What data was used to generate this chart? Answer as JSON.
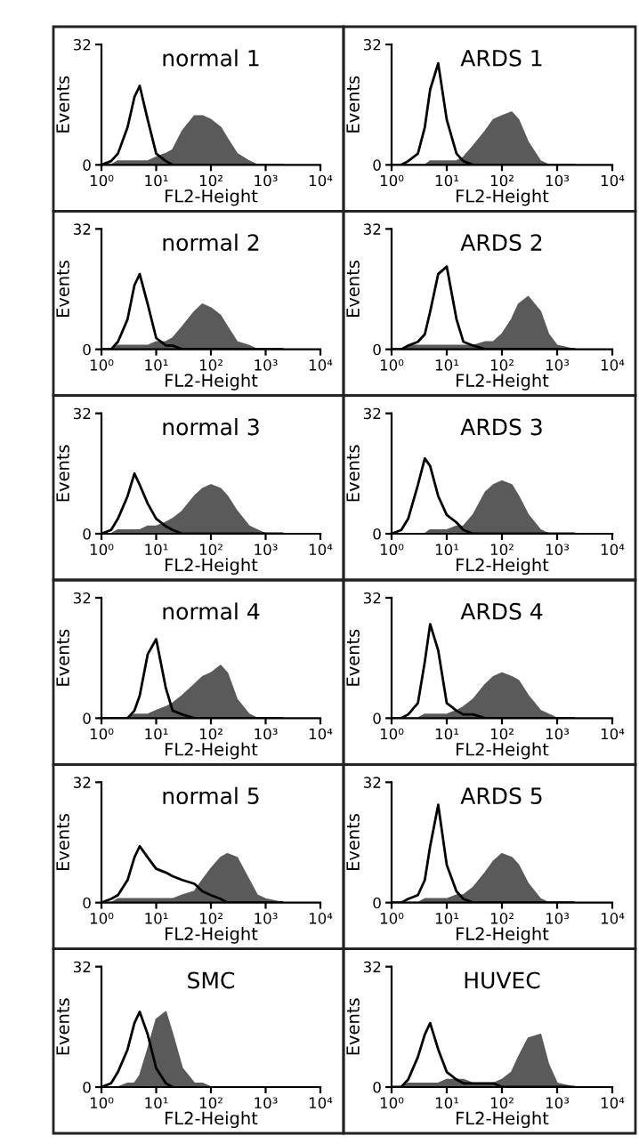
{
  "chart_data": [
    {
      "type": "area",
      "title": "normal 1",
      "xlabel": "FL2-Height",
      "ylabel": "Events",
      "log": "x",
      "xlim": [
        1,
        10000
      ],
      "ylim": [
        0,
        32
      ],
      "xticks": [
        {
          "value": 1,
          "label": "10⁰"
        },
        {
          "value": 10,
          "label": "10¹"
        },
        {
          "value": 100,
          "label": "10²"
        },
        {
          "value": 1000,
          "label": "10³"
        },
        {
          "value": 10000,
          "label": "10⁴"
        }
      ],
      "yticks": [
        0,
        32
      ],
      "x": [
        1,
        1.5,
        2,
        3,
        4,
        5,
        7,
        10,
        15,
        20,
        30,
        50,
        70,
        100,
        150,
        200,
        300,
        500,
        700,
        1000,
        2000
      ],
      "series": [
        {
          "color": "#5a5a5a",
          "values": [
            0,
            0,
            1,
            1,
            1,
            1,
            1,
            2,
            3,
            4,
            9,
            13,
            13,
            12,
            10,
            7,
            3,
            1,
            0,
            0,
            0
          ]
        },
        {
          "type": "line",
          "color": "#000000",
          "values": [
            0,
            1,
            3,
            10,
            18,
            21,
            12,
            3,
            1,
            0,
            0,
            0,
            0,
            0,
            0,
            0,
            0,
            0,
            0,
            0,
            0
          ]
        }
      ]
    },
    {
      "type": "area",
      "title": "ARDS 1",
      "xlabel": "FL2-Height",
      "ylabel": "Events",
      "log": "x",
      "xlim": [
        1,
        10000
      ],
      "ylim": [
        0,
        32
      ],
      "xticks": [
        {
          "value": 1,
          "label": "10⁰"
        },
        {
          "value": 10,
          "label": "10¹"
        },
        {
          "value": 100,
          "label": "10²"
        },
        {
          "value": 1000,
          "label": "10³"
        },
        {
          "value": 10000,
          "label": "10⁴"
        }
      ],
      "yticks": [
        0,
        32
      ],
      "x": [
        1,
        1.5,
        2,
        3,
        4,
        5,
        7,
        10,
        15,
        20,
        30,
        50,
        70,
        100,
        150,
        200,
        300,
        500,
        700,
        1000,
        2000
      ],
      "series": [
        {
          "color": "#5a5a5a",
          "values": [
            0,
            0,
            0,
            0,
            0,
            1,
            1,
            1,
            1,
            2,
            5,
            9,
            12,
            13,
            14,
            12,
            6,
            1,
            0,
            0,
            0
          ]
        },
        {
          "type": "line",
          "color": "#000000",
          "values": [
            0,
            0,
            1,
            3,
            10,
            20,
            27,
            12,
            3,
            1,
            0,
            0,
            0,
            0,
            0,
            0,
            0,
            0,
            0,
            0,
            0
          ]
        }
      ]
    },
    {
      "type": "area",
      "title": "normal 2",
      "xlabel": "FL2-Height",
      "ylabel": "Events",
      "log": "x",
      "xlim": [
        1,
        10000
      ],
      "ylim": [
        0,
        32
      ],
      "xticks": [
        {
          "value": 1,
          "label": "10⁰"
        },
        {
          "value": 10,
          "label": "10¹"
        },
        {
          "value": 100,
          "label": "10²"
        },
        {
          "value": 1000,
          "label": "10³"
        },
        {
          "value": 10000,
          "label": "10⁴"
        }
      ],
      "yticks": [
        0,
        32
      ],
      "x": [
        1,
        1.5,
        2,
        3,
        4,
        5,
        7,
        10,
        15,
        20,
        30,
        50,
        70,
        100,
        150,
        200,
        300,
        500,
        700,
        1000,
        2000
      ],
      "series": [
        {
          "color": "#5a5a5a",
          "values": [
            0,
            0,
            1,
            1,
            1,
            1,
            1,
            2,
            2,
            3,
            6,
            10,
            12,
            11,
            9,
            6,
            2,
            1,
            0,
            0,
            0
          ]
        },
        {
          "type": "line",
          "color": "#000000",
          "values": [
            0,
            0,
            2,
            8,
            17,
            20,
            12,
            3,
            1,
            1,
            0,
            0,
            0,
            0,
            0,
            0,
            0,
            0,
            0,
            0,
            0
          ]
        }
      ]
    },
    {
      "type": "area",
      "title": "ARDS 2",
      "xlabel": "FL2-Height",
      "ylabel": "Events",
      "log": "x",
      "xlim": [
        1,
        10000
      ],
      "ylim": [
        0,
        32
      ],
      "xticks": [
        {
          "value": 1,
          "label": "10⁰"
        },
        {
          "value": 10,
          "label": "10¹"
        },
        {
          "value": 100,
          "label": "10²"
        },
        {
          "value": 1000,
          "label": "10³"
        },
        {
          "value": 10000,
          "label": "10⁴"
        }
      ],
      "yticks": [
        0,
        32
      ],
      "x": [
        1,
        1.5,
        2,
        3,
        4,
        5,
        7,
        10,
        15,
        20,
        30,
        50,
        70,
        100,
        150,
        200,
        300,
        500,
        700,
        1000,
        2000
      ],
      "series": [
        {
          "color": "#5a5a5a",
          "values": [
            0,
            0,
            1,
            1,
            1,
            1,
            1,
            1,
            1,
            1,
            1,
            2,
            2,
            4,
            8,
            12,
            14,
            10,
            4,
            1,
            0
          ]
        },
        {
          "type": "line",
          "color": "#000000",
          "values": [
            0,
            0,
            1,
            2,
            4,
            10,
            20,
            22,
            8,
            2,
            1,
            0,
            0,
            0,
            0,
            0,
            0,
            0,
            0,
            0,
            0
          ]
        }
      ]
    },
    {
      "type": "area",
      "title": "normal 3",
      "xlabel": "FL2-Height",
      "ylabel": "Events",
      "log": "x",
      "xlim": [
        1,
        10000
      ],
      "ylim": [
        0,
        32
      ],
      "xticks": [
        {
          "value": 1,
          "label": "10⁰"
        },
        {
          "value": 10,
          "label": "10¹"
        },
        {
          "value": 100,
          "label": "10²"
        },
        {
          "value": 1000,
          "label": "10³"
        },
        {
          "value": 10000,
          "label": "10⁴"
        }
      ],
      "yticks": [
        0,
        32
      ],
      "x": [
        1,
        1.5,
        2,
        3,
        4,
        5,
        7,
        10,
        15,
        20,
        30,
        50,
        70,
        100,
        150,
        200,
        300,
        500,
        700,
        1000,
        2000
      ],
      "series": [
        {
          "color": "#5a5a5a",
          "values": [
            0,
            0,
            1,
            1,
            1,
            1,
            2,
            2,
            3,
            4,
            6,
            10,
            12,
            13,
            12,
            10,
            6,
            2,
            1,
            0,
            0
          ]
        },
        {
          "type": "line",
          "color": "#000000",
          "values": [
            0,
            1,
            4,
            10,
            16,
            13,
            8,
            4,
            2,
            1,
            0,
            0,
            0,
            0,
            0,
            0,
            0,
            0,
            0,
            0,
            0
          ]
        }
      ]
    },
    {
      "type": "area",
      "title": "ARDS 3",
      "xlabel": "FL2-Height",
      "ylabel": "Events",
      "log": "x",
      "xlim": [
        1,
        10000
      ],
      "ylim": [
        0,
        32
      ],
      "xticks": [
        {
          "value": 1,
          "label": "10⁰"
        },
        {
          "value": 10,
          "label": "10¹"
        },
        {
          "value": 100,
          "label": "10²"
        },
        {
          "value": 1000,
          "label": "10³"
        },
        {
          "value": 10000,
          "label": "10⁴"
        }
      ],
      "yticks": [
        0,
        32
      ],
      "x": [
        1,
        1.5,
        2,
        3,
        4,
        5,
        7,
        10,
        15,
        20,
        30,
        50,
        70,
        100,
        150,
        200,
        300,
        500,
        700,
        1000,
        2000
      ],
      "series": [
        {
          "color": "#5a5a5a",
          "values": [
            0,
            0,
            0,
            0,
            0,
            1,
            1,
            1,
            2,
            2,
            5,
            11,
            13,
            14,
            13,
            10,
            5,
            1,
            0,
            0,
            0
          ]
        },
        {
          "type": "line",
          "color": "#000000",
          "values": [
            0,
            1,
            4,
            13,
            20,
            18,
            10,
            5,
            3,
            1,
            0,
            0,
            0,
            0,
            0,
            0,
            0,
            0,
            0,
            0,
            0
          ]
        }
      ]
    },
    {
      "type": "area",
      "title": "normal 4",
      "xlabel": "FL2-Height",
      "ylabel": "Events",
      "log": "x",
      "xlim": [
        1,
        10000
      ],
      "ylim": [
        0,
        32
      ],
      "xticks": [
        {
          "value": 1,
          "label": "10⁰"
        },
        {
          "value": 10,
          "label": "10¹"
        },
        {
          "value": 100,
          "label": "10²"
        },
        {
          "value": 1000,
          "label": "10³"
        },
        {
          "value": 10000,
          "label": "10⁴"
        }
      ],
      "yticks": [
        0,
        32
      ],
      "x": [
        1,
        1.5,
        2,
        3,
        4,
        5,
        7,
        10,
        15,
        20,
        30,
        50,
        70,
        100,
        150,
        200,
        300,
        500,
        700,
        1000,
        2000
      ],
      "series": [
        {
          "color": "#5a5a5a",
          "values": [
            0,
            0,
            0,
            0,
            1,
            1,
            1,
            2,
            3,
            4,
            6,
            9,
            11,
            12,
            14,
            12,
            5,
            1,
            0,
            0,
            0
          ]
        },
        {
          "type": "line",
          "color": "#000000",
          "values": [
            0,
            0,
            0,
            0,
            2,
            6,
            17,
            21,
            8,
            2,
            1,
            0,
            0,
            0,
            0,
            0,
            0,
            0,
            0,
            0,
            0
          ]
        }
      ]
    },
    {
      "type": "area",
      "title": "ARDS 4",
      "xlabel": "FL2-Height",
      "ylabel": "Events",
      "log": "x",
      "xlim": [
        1,
        10000
      ],
      "ylim": [
        0,
        32
      ],
      "xticks": [
        {
          "value": 1,
          "label": "10⁰"
        },
        {
          "value": 10,
          "label": "10¹"
        },
        {
          "value": 100,
          "label": "10²"
        },
        {
          "value": 1000,
          "label": "10³"
        },
        {
          "value": 10000,
          "label": "10⁴"
        }
      ],
      "yticks": [
        0,
        32
      ],
      "x": [
        1,
        1.5,
        2,
        3,
        4,
        5,
        7,
        10,
        15,
        20,
        30,
        50,
        70,
        100,
        150,
        200,
        300,
        500,
        700,
        1000,
        2000
      ],
      "series": [
        {
          "color": "#5a5a5a",
          "values": [
            0,
            0,
            0,
            0,
            1,
            1,
            1,
            1,
            2,
            3,
            5,
            9,
            11,
            12,
            11,
            10,
            6,
            2,
            1,
            0,
            0
          ]
        },
        {
          "type": "line",
          "color": "#000000",
          "values": [
            0,
            0,
            1,
            4,
            15,
            25,
            18,
            4,
            2,
            1,
            1,
            0,
            0,
            0,
            0,
            0,
            0,
            0,
            0,
            0,
            0
          ]
        }
      ]
    },
    {
      "type": "area",
      "title": "normal 5",
      "xlabel": "FL2-Height",
      "ylabel": "Events",
      "log": "x",
      "xlim": [
        1,
        10000
      ],
      "ylim": [
        0,
        32
      ],
      "xticks": [
        {
          "value": 1,
          "label": "10⁰"
        },
        {
          "value": 10,
          "label": "10¹"
        },
        {
          "value": 100,
          "label": "10²"
        },
        {
          "value": 1000,
          "label": "10³"
        },
        {
          "value": 10000,
          "label": "10⁴"
        }
      ],
      "yticks": [
        0,
        32
      ],
      "x": [
        1,
        1.5,
        2,
        3,
        4,
        5,
        7,
        10,
        15,
        20,
        30,
        50,
        70,
        100,
        150,
        200,
        300,
        500,
        700,
        1000,
        2000
      ],
      "series": [
        {
          "color": "#5a5a5a",
          "values": [
            0,
            0,
            1,
            1,
            1,
            1,
            1,
            1,
            1,
            1,
            2,
            3,
            6,
            9,
            12,
            13,
            12,
            6,
            2,
            1,
            0
          ]
        },
        {
          "type": "line",
          "color": "#000000",
          "values": [
            0,
            1,
            2,
            6,
            12,
            15,
            12,
            9,
            8,
            7,
            6,
            5,
            3,
            2,
            1,
            0,
            0,
            0,
            0,
            0,
            0
          ]
        }
      ]
    },
    {
      "type": "area",
      "title": "ARDS 5",
      "xlabel": "FL2-Height",
      "ylabel": "Events",
      "log": "x",
      "xlim": [
        1,
        10000
      ],
      "ylim": [
        0,
        32
      ],
      "xticks": [
        {
          "value": 1,
          "label": "10⁰"
        },
        {
          "value": 10,
          "label": "10¹"
        },
        {
          "value": 100,
          "label": "10²"
        },
        {
          "value": 1000,
          "label": "10³"
        },
        {
          "value": 10000,
          "label": "10⁴"
        }
      ],
      "yticks": [
        0,
        32
      ],
      "x": [
        1,
        1.5,
        2,
        3,
        4,
        5,
        7,
        10,
        15,
        20,
        30,
        50,
        70,
        100,
        150,
        200,
        300,
        500,
        700,
        1000,
        2000
      ],
      "series": [
        {
          "color": "#5a5a5a",
          "values": [
            0,
            0,
            0,
            0,
            1,
            1,
            1,
            1,
            2,
            2,
            4,
            8,
            11,
            13,
            12,
            10,
            5,
            1,
            0,
            0,
            0
          ]
        },
        {
          "type": "line",
          "color": "#000000",
          "values": [
            0,
            0,
            1,
            2,
            6,
            15,
            26,
            10,
            3,
            1,
            0,
            0,
            0,
            0,
            0,
            0,
            0,
            0,
            0,
            0,
            0
          ]
        }
      ]
    },
    {
      "type": "area",
      "title": "SMC",
      "xlabel": "FL2-Height",
      "ylabel": "Events",
      "log": "x",
      "xlim": [
        1,
        10000
      ],
      "ylim": [
        0,
        32
      ],
      "xticks": [
        {
          "value": 1,
          "label": "10⁰"
        },
        {
          "value": 10,
          "label": "10¹"
        },
        {
          "value": 100,
          "label": "10²"
        },
        {
          "value": 1000,
          "label": "10³"
        },
        {
          "value": 10000,
          "label": "10⁴"
        }
      ],
      "yticks": [
        0,
        32
      ],
      "x": [
        1,
        1.5,
        2,
        3,
        4,
        5,
        7,
        10,
        15,
        20,
        30,
        50,
        70,
        100,
        150,
        200,
        300,
        500,
        700,
        1000,
        2000
      ],
      "series": [
        {
          "color": "#5a5a5a",
          "values": [
            0,
            0,
            0,
            1,
            1,
            3,
            10,
            18,
            20,
            14,
            5,
            1,
            1,
            0,
            0,
            0,
            0,
            0,
            0,
            0,
            0
          ]
        },
        {
          "type": "line",
          "color": "#000000",
          "values": [
            0,
            1,
            4,
            10,
            17,
            20,
            14,
            5,
            1,
            0,
            null,
            null,
            null,
            null,
            null,
            null,
            null,
            null,
            null,
            null,
            null
          ]
        }
      ]
    },
    {
      "type": "area",
      "title": "HUVEC",
      "xlabel": "FL2-Height",
      "ylabel": "Events",
      "log": "x",
      "xlim": [
        1,
        10000
      ],
      "ylim": [
        0,
        32
      ],
      "xticks": [
        {
          "value": 1,
          "label": "10⁰"
        },
        {
          "value": 10,
          "label": "10¹"
        },
        {
          "value": 100,
          "label": "10²"
        },
        {
          "value": 1000,
          "label": "10³"
        },
        {
          "value": 10000,
          "label": "10⁴"
        }
      ],
      "yticks": [
        0,
        32
      ],
      "x": [
        1,
        1.5,
        2,
        3,
        4,
        5,
        7,
        10,
        15,
        20,
        30,
        50,
        70,
        100,
        150,
        200,
        300,
        500,
        700,
        1000,
        2000
      ],
      "series": [
        {
          "color": "#5a5a5a",
          "values": [
            0,
            0,
            1,
            1,
            1,
            1,
            1,
            2,
            2,
            2,
            1,
            1,
            1,
            2,
            4,
            8,
            13,
            14,
            6,
            1,
            0
          ]
        },
        {
          "type": "line",
          "color": "#000000",
          "values": [
            0,
            0,
            2,
            8,
            14,
            17,
            10,
            4,
            2,
            1,
            1,
            1,
            1,
            0,
            0,
            0,
            0,
            0,
            0,
            0,
            0
          ]
        }
      ]
    }
  ]
}
